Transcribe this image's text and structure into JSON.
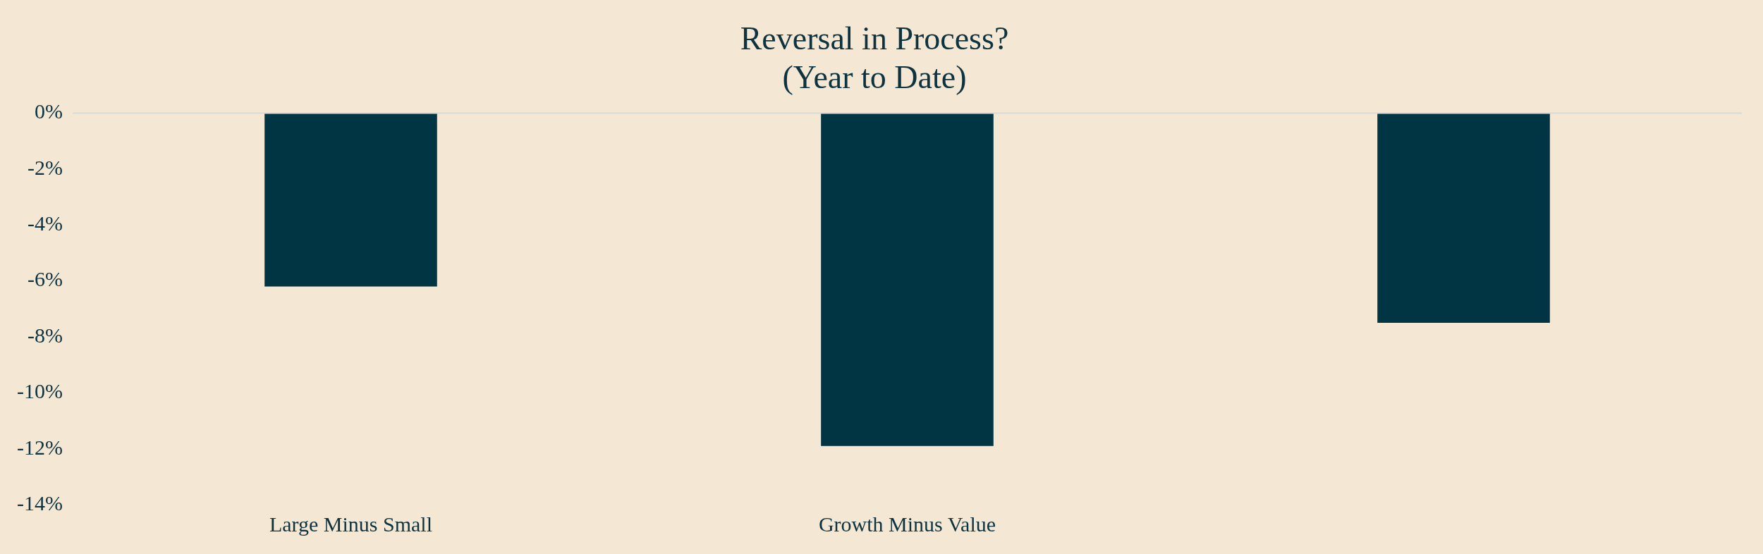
{
  "chart_data": {
    "type": "bar",
    "title": "Reversal in Process?",
    "subtitle": "(Year to Date)",
    "categories": [
      "Large Minus Small",
      "Growth Minus Value",
      null
    ],
    "values": [
      -6.2,
      -11.9,
      -7.5
    ],
    "color": "#023543",
    "ylim": [
      -14,
      0
    ],
    "yticks": [
      {
        "value": 0,
        "label": "0%"
      },
      {
        "value": -2,
        "label": "-2%"
      },
      {
        "value": -4,
        "label": "-4%"
      },
      {
        "value": -6,
        "label": "-6%"
      },
      {
        "value": -8,
        "label": "-8%"
      },
      {
        "value": -10,
        "label": "-10%"
      },
      {
        "value": -12,
        "label": "-12%"
      },
      {
        "value": -14,
        "label": "-14%"
      }
    ],
    "ref_lines": [
      {
        "axis": "y",
        "value": 0,
        "color": "#d9d9d9"
      }
    ],
    "grid": false,
    "legend": false
  }
}
